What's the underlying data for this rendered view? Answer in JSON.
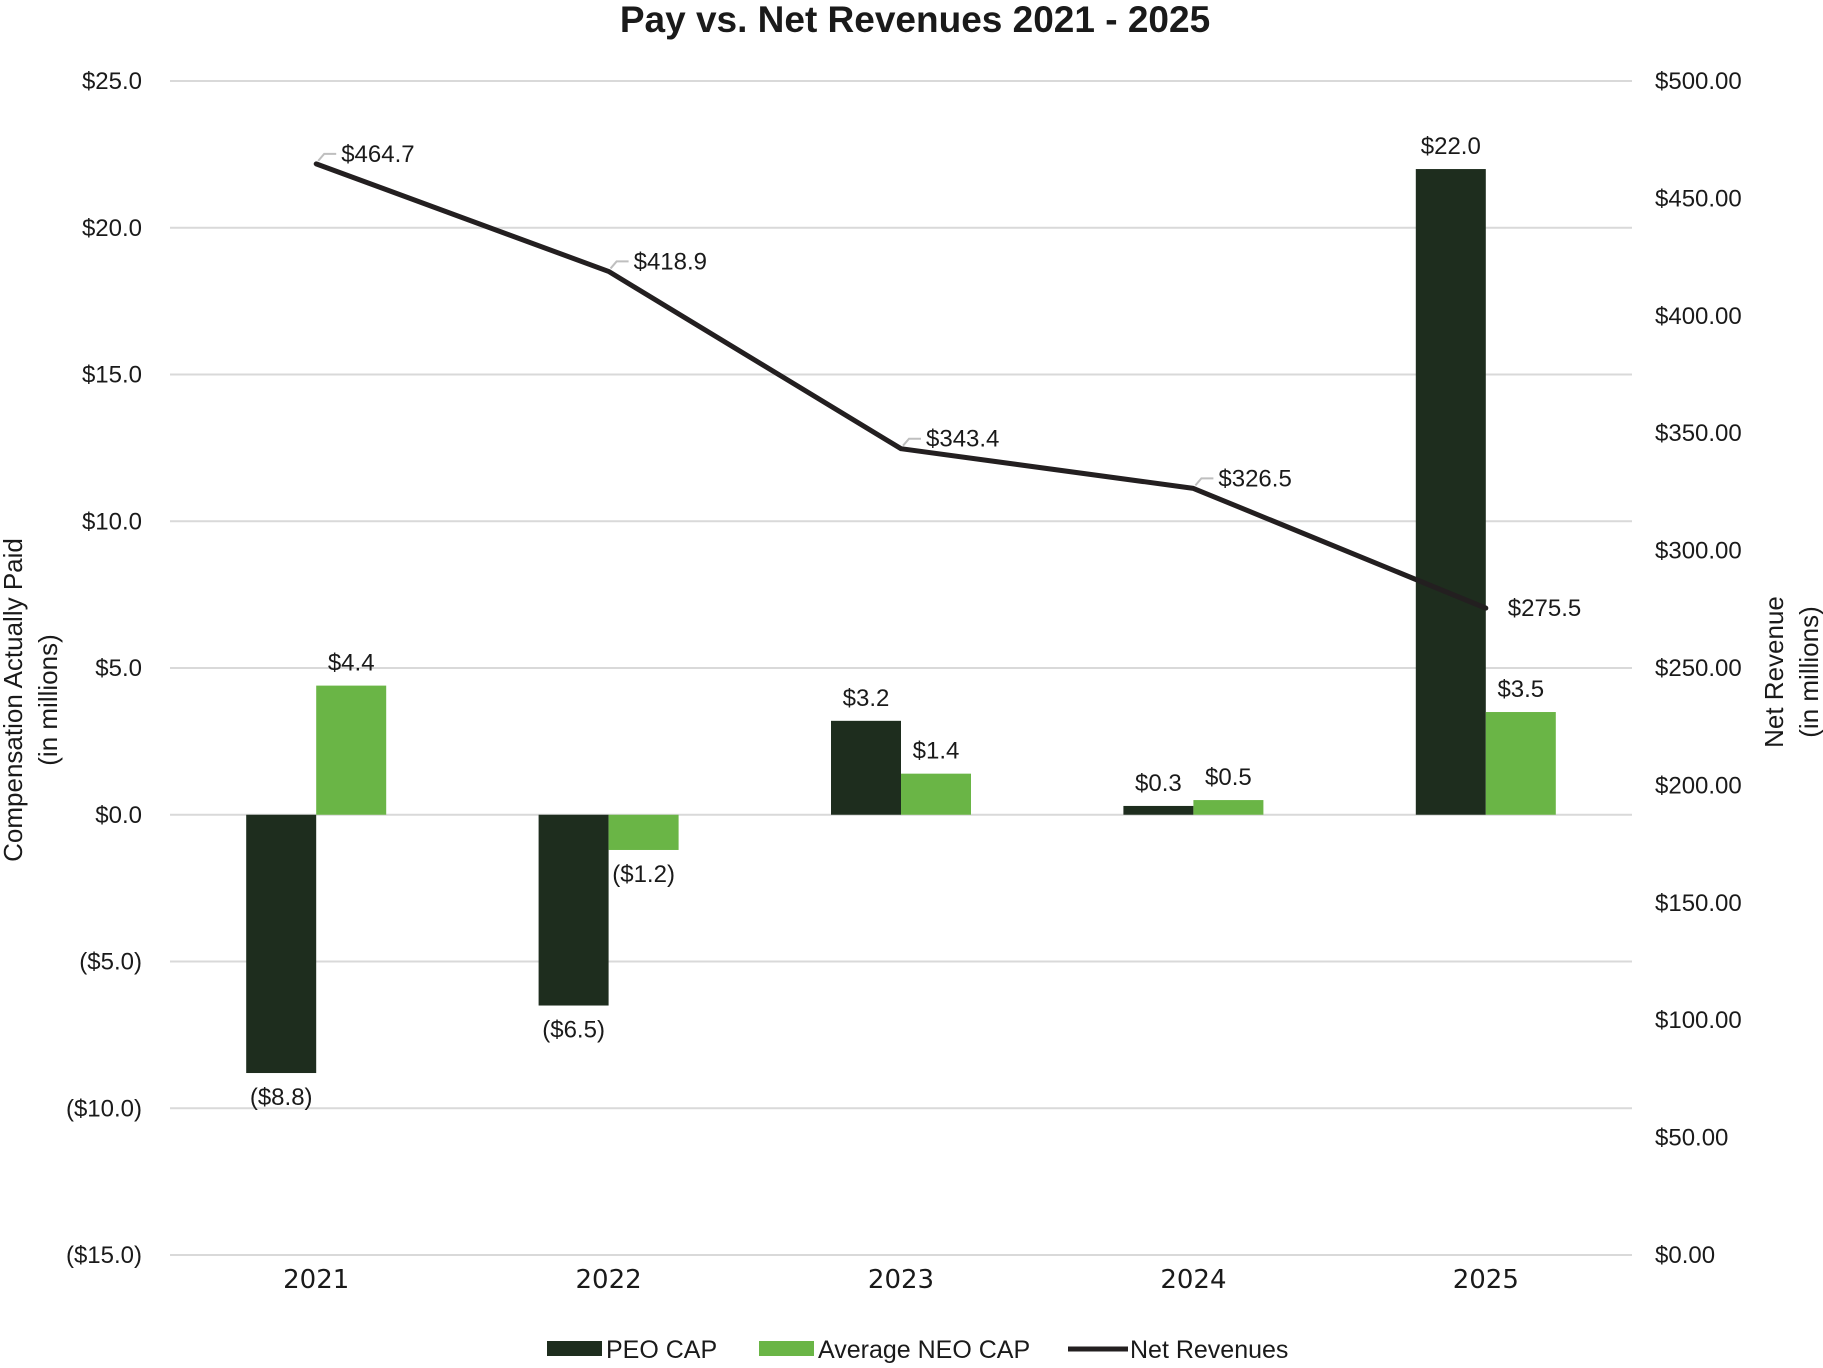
{
  "chart_data": {
    "type": "bar",
    "title": "Pay vs. Net Revenues 2021 - 2025",
    "categories": [
      "2021",
      "2022",
      "2023",
      "2024",
      "2025"
    ],
    "series": [
      {
        "name": "PEO CAP",
        "type": "bar",
        "axis": "left",
        "color": "#1e2d1e",
        "values": [
          -8.8,
          -6.5,
          3.2,
          0.3,
          22.0
        ],
        "labels": [
          "($8.8)",
          "($6.5)",
          "$3.2",
          "$0.3",
          "$22.0"
        ]
      },
      {
        "name": "Average NEO CAP",
        "type": "bar",
        "axis": "left",
        "color": "#6ab546",
        "values": [
          4.4,
          -1.2,
          1.4,
          0.5,
          3.5
        ],
        "labels": [
          "$4.4",
          "($1.2)",
          "$1.4",
          "$0.5",
          "$3.5"
        ]
      },
      {
        "name": "Net Revenues",
        "type": "line",
        "axis": "right",
        "color": "#231f20",
        "values": [
          464.7,
          418.9,
          343.4,
          326.5,
          275.5
        ],
        "labels": [
          "$464.7",
          "$418.9",
          "$343.4",
          "$326.5",
          "$275.5"
        ]
      }
    ],
    "y_left": {
      "label_line1": "Compensation Actually Paid",
      "label_line2": "(in millions)",
      "range": [
        -15,
        25
      ],
      "ticks": [
        25,
        20,
        15,
        10,
        5,
        0,
        -5,
        -10,
        -15
      ],
      "tick_labels": [
        "$25.0",
        "$20.0",
        "$15.0",
        "$10.0",
        "$5.0",
        "$0.0",
        "($5.0)",
        "($10.0)",
        "($15.0)"
      ]
    },
    "y_right": {
      "label_line1": "Net Revenue",
      "label_line2": "(in millions)",
      "range": [
        0,
        500
      ],
      "ticks": [
        500,
        450,
        400,
        350,
        300,
        250,
        200,
        150,
        100,
        50,
        0
      ],
      "tick_labels": [
        "$500.00",
        "$450.00",
        "$400.00",
        "$350.00",
        "$300.00",
        "$250.00",
        "$200.00",
        "$150.00",
        "$100.00",
        "$50.00",
        "$0.00"
      ]
    },
    "grid": true,
    "legend_position": "bottom-center",
    "legend": [
      "PEO CAP",
      "Average NEO CAP",
      "Net Revenues"
    ]
  }
}
